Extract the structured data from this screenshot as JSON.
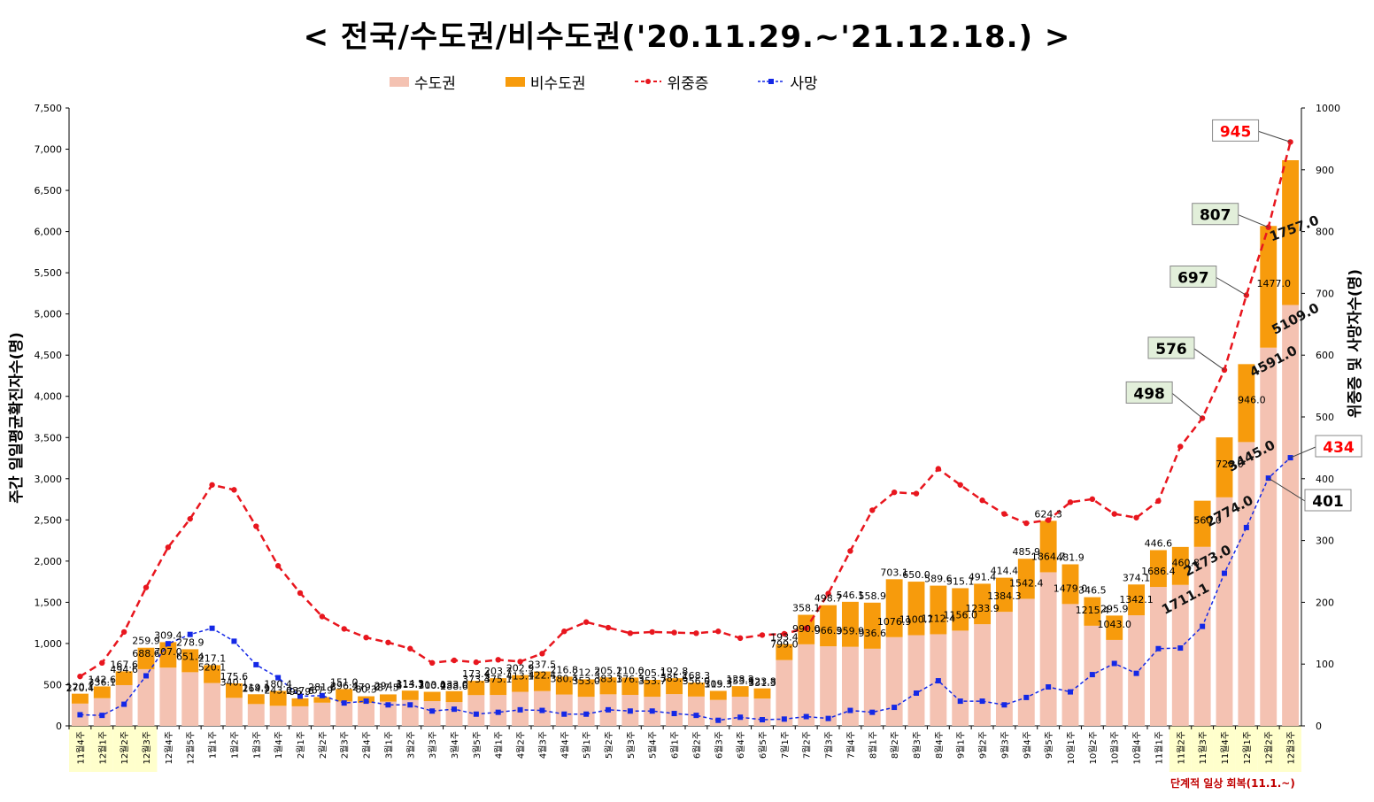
{
  "title": "< 전국/수도권/비수도권('20.11.29.~'21.12.18.) >",
  "legend": {
    "capital": "수도권",
    "noncapital": "비수도권",
    "severe": "위중증",
    "death": "사망"
  },
  "footnote": "단계적 일상 회복(11.1.~)",
  "colors": {
    "capital": "#f4c2b2",
    "noncapital": "#f79b0c",
    "severe": "#e8161e",
    "death": "#1428e6",
    "highlight": "#ffffcc",
    "callout_red": "#ff0000",
    "callout_box": "#e2efda"
  },
  "chart_data": {
    "type": "bar",
    "stacked": true,
    "ylabel": "주간 일일평균확진자수(명)",
    "y2label": "위중증 및 사망자수(명)",
    "ylim": [
      0,
      7500
    ],
    "y2lim": [
      0,
      1000
    ],
    "yticks": [
      "0",
      "500",
      "1,000",
      "1,500",
      "2,000",
      "2,500",
      "3,000",
      "3,500",
      "4,000",
      "4,500",
      "5,000",
      "5,500",
      "6,000",
      "6,500",
      "7,000",
      "7,500"
    ],
    "y2ticks": [
      "0",
      "100",
      "200",
      "300",
      "400",
      "500",
      "600",
      "700",
      "800",
      "900",
      "1000"
    ],
    "categories": [
      "11월4주",
      "12월1주",
      "12월2주",
      "12월3주",
      "12월4주",
      "12월5주",
      "1월1주",
      "1월2주",
      "1월3주",
      "1월4주",
      "2월1주",
      "2월2주",
      "2월3주",
      "2월4주",
      "3월1주",
      "3월2주",
      "3월3주",
      "3월4주",
      "3월5주",
      "4월1주",
      "4월2주",
      "4월3주",
      "4월4주",
      "5월1주",
      "5월2주",
      "5월3주",
      "5월4주",
      "6월1주",
      "6월2주",
      "6월3주",
      "6월4주",
      "6월5주",
      "7월1주",
      "7월2주",
      "7월3주",
      "7월4주",
      "8월1주",
      "8월2주",
      "8월3주",
      "8월4주",
      "9월1주",
      "9월2주",
      "9월3주",
      "9월4주",
      "9월5주",
      "10월1주",
      "10월2주",
      "10월3주",
      "10월4주",
      "11월1주",
      "11월2주",
      "11월3주",
      "11월4주",
      "12월1주",
      "12월2주",
      "12월3주"
    ],
    "highlight_categories": [
      "11월2주",
      "11월3주",
      "11월4주",
      "12월1주",
      "12월2주",
      "12월3주"
    ],
    "series": [
      {
        "name": "수도권",
        "values": [
          270.4,
          336.1,
          494.6,
          688.6,
          707.0,
          651.4,
          520.1,
          340.1,
          264.9,
          243.6,
          237.6,
          281.6,
          296.4,
          279.0,
          294.6,
          313.7,
          300.4,
          288.6,
          373.4,
          375.1,
          413.1,
          422.4,
          380.4,
          353.0,
          383.1,
          376.3,
          353.7,
          385.6,
          356.0,
          315.3,
          353.9,
          331.3,
          799.0,
          990.0,
          966.3,
          959.9,
          936.6,
          1076.9,
          1100.7,
          1112.4,
          1156.0,
          1233.9,
          1384.3,
          1542.4,
          1864.7,
          1479.0,
          1215.4,
          1043.0,
          1342.1,
          1686.4,
          1711.1,
          2173.0,
          2774.0,
          3445.0,
          4591.0,
          5109.0
        ]
      },
      {
        "name": "비수도권",
        "values": [
          120.1,
          142.6,
          167.6,
          259.9,
          309.4,
          278.9,
          217.1,
          175.6,
          119.1,
          180.4,
          96.9,
          67.9,
          151.0,
          80.3,
          87.5,
          114.3,
          113.0,
          133.0,
          173.4,
          203.7,
          202.9,
          237.5,
          216.8,
          212.3,
          205.1,
          210.0,
          205.1,
          192.8,
          168.3,
          109.3,
          128.2,
          123.8,
          193.4,
          358.1,
          498.7,
          546.1,
          558.9,
          703.1,
          650.0,
          589.6,
          515.1,
          491.4,
          414.4,
          485.9,
          624.3,
          481.9,
          346.5,
          295.9,
          374.1,
          446.6,
          460.8,
          560.0,
          728.0,
          946.0,
          1477.0,
          1757.0
        ]
      },
      {
        "name": "위중증",
        "values": [
          80,
          102,
          152,
          224,
          289,
          335,
          390,
          382,
          323,
          259,
          215,
          177,
          157,
          143,
          135,
          125,
          102,
          106,
          103,
          107,
          104,
          117,
          153,
          168,
          159,
          150,
          152,
          151,
          150,
          153,
          142,
          147,
          149,
          158,
          214,
          283,
          349,
          378,
          376,
          416,
          390,
          365,
          343,
          328,
          333,
          362,
          367,
          343,
          337,
          364,
          452,
          498,
          576,
          697,
          807,
          945
        ]
      },
      {
        "name": "사망",
        "values": [
          18,
          17,
          35,
          81,
          133,
          148,
          158,
          137,
          99,
          78,
          48,
          49,
          37,
          40,
          34,
          34,
          24,
          27,
          19,
          22,
          26,
          25,
          19,
          19,
          26,
          24,
          24,
          20,
          17,
          9,
          14,
          10,
          11,
          15,
          12,
          25,
          22,
          30,
          53,
          73,
          40,
          40,
          34,
          46,
          63,
          55,
          83,
          101,
          85,
          125,
          126,
          161,
          247,
          321,
          401,
          434
        ]
      }
    ],
    "callouts": [
      "945",
      "807",
      "697",
      "576",
      "498",
      "434",
      "401"
    ]
  }
}
